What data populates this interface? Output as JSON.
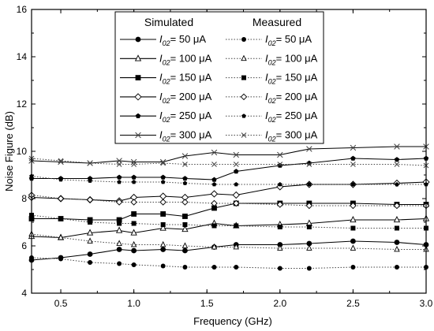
{
  "chart_data": {
    "type": "line",
    "xlabel": "Frequency (GHz)",
    "ylabel": "Noise Figure (dB)",
    "xlim": [
      0.3,
      3.0
    ],
    "ylim": [
      4,
      16
    ],
    "xticks": [
      "0.5",
      "1.0",
      "1.5",
      "2.0",
      "2.5",
      "3.0"
    ],
    "yticks": [
      "4",
      "6",
      "8",
      "10",
      "12",
      "14",
      "16"
    ],
    "legend": {
      "placement": "top-center",
      "simulated_heading": "Simulated",
      "measured_heading": "Measured"
    },
    "x": [
      0.3,
      0.5,
      0.7,
      0.9,
      1.0,
      1.2,
      1.35,
      1.55,
      1.7,
      2.0,
      2.2,
      2.5,
      2.8,
      3.0
    ],
    "series": [
      {
        "label_sub": "02",
        "label_value": "= 50 μA",
        "group": "simulated",
        "marker": "circle",
        "values": [
          5.4,
          5.5,
          5.65,
          5.85,
          5.8,
          5.85,
          5.8,
          5.95,
          6.05,
          6.05,
          6.1,
          6.2,
          6.15,
          6.05
        ]
      },
      {
        "label_sub": "02",
        "label_value": "= 100 μA",
        "group": "simulated",
        "marker": "triangle",
        "values": [
          6.4,
          6.35,
          6.55,
          6.65,
          6.55,
          6.75,
          6.7,
          6.95,
          6.85,
          6.9,
          6.95,
          7.1,
          7.1,
          7.15
        ]
      },
      {
        "label_sub": "02",
        "label_value": "= 150 μA",
        "group": "simulated",
        "marker": "square",
        "values": [
          7.15,
          7.15,
          7.1,
          7.1,
          7.35,
          7.35,
          7.25,
          7.6,
          7.8,
          7.8,
          7.8,
          7.8,
          7.75,
          7.75
        ]
      },
      {
        "label_sub": "02",
        "label_value": "= 200 μA",
        "group": "simulated",
        "marker": "diamond",
        "values": [
          8.05,
          8.0,
          7.95,
          7.9,
          8.05,
          8.1,
          8.05,
          8.2,
          8.15,
          8.5,
          8.6,
          8.6,
          8.65,
          8.7
        ]
      },
      {
        "label_sub": "02",
        "label_value": "= 250 μA",
        "group": "simulated",
        "marker": "hexagon",
        "values": [
          8.85,
          8.85,
          8.85,
          8.9,
          8.9,
          8.9,
          8.85,
          8.8,
          9.15,
          9.4,
          9.5,
          9.7,
          9.65,
          9.7
        ]
      },
      {
        "label_sub": "02",
        "label_value": "= 300 μA",
        "group": "simulated",
        "marker": "x",
        "values": [
          9.6,
          9.55,
          9.5,
          9.6,
          9.55,
          9.55,
          9.8,
          9.95,
          9.85,
          9.85,
          10.1,
          10.15,
          10.2,
          10.2
        ]
      },
      {
        "label_sub": "02",
        "label_value": "= 50 μA",
        "group": "measured",
        "marker": "circle",
        "values": [
          5.5,
          5.45,
          5.3,
          5.25,
          5.2,
          5.15,
          5.1,
          5.1,
          5.1,
          5.05,
          5.05,
          5.1,
          5.1,
          5.1
        ]
      },
      {
        "label_sub": "02",
        "label_value": "= 100 μA",
        "group": "measured",
        "marker": "triangle",
        "values": [
          6.5,
          6.35,
          6.2,
          6.1,
          6.05,
          6.05,
          6.0,
          5.95,
          5.95,
          5.9,
          5.9,
          5.9,
          5.85,
          5.85
        ]
      },
      {
        "label_sub": "02",
        "label_value": "= 150 μA",
        "group": "measured",
        "marker": "square",
        "values": [
          7.3,
          7.15,
          7.0,
          6.95,
          6.95,
          6.9,
          6.9,
          6.85,
          6.85,
          6.8,
          6.8,
          6.75,
          6.75,
          6.75
        ]
      },
      {
        "label_sub": "02",
        "label_value": "= 200 μA",
        "group": "measured",
        "marker": "diamond",
        "values": [
          8.15,
          8.0,
          7.95,
          7.85,
          7.85,
          7.85,
          7.85,
          7.8,
          7.8,
          7.75,
          7.7,
          7.7,
          7.7,
          7.7
        ]
      },
      {
        "label_sub": "02",
        "label_value": "= 250 μA",
        "group": "measured",
        "marker": "hexagon",
        "values": [
          8.95,
          8.8,
          8.75,
          8.7,
          8.7,
          8.7,
          8.65,
          8.6,
          8.6,
          8.6,
          8.6,
          8.6,
          8.6,
          8.6
        ]
      },
      {
        "label_sub": "02",
        "label_value": "= 300 μA",
        "group": "measured",
        "marker": "x",
        "values": [
          9.7,
          9.6,
          9.5,
          9.45,
          9.45,
          9.5,
          9.45,
          9.45,
          9.45,
          9.45,
          9.45,
          9.45,
          9.45,
          9.4
        ]
      }
    ]
  }
}
